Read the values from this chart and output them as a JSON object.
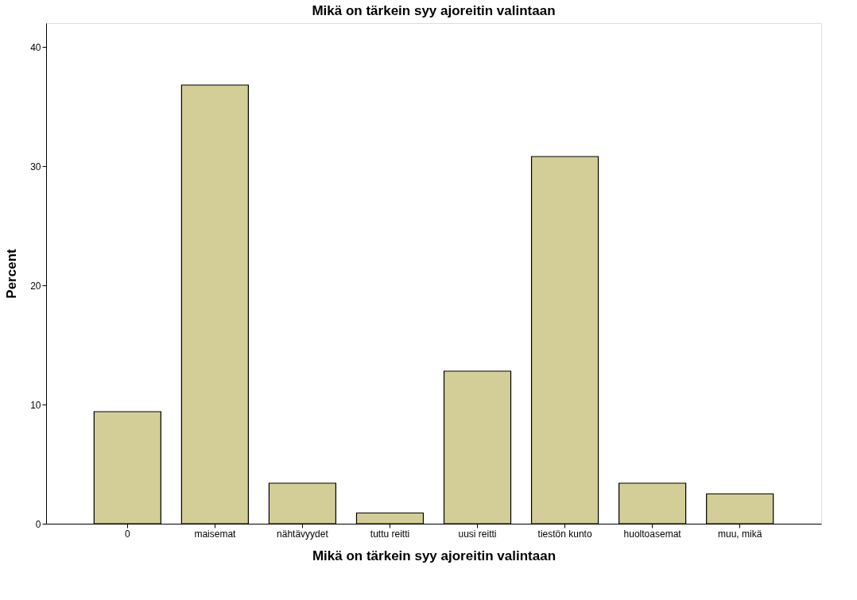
{
  "chart_data": {
    "type": "bar",
    "title": "Mikä on tärkein syy ajoreitin valintaan",
    "xlabel": "Mikä on tärkein syy ajoreitin valintaan",
    "ylabel": "Percent",
    "categories": [
      "0",
      "maisemat",
      "nähtävyydet",
      "tuttu reitti",
      "uusi reitti",
      "tiestön kunto",
      "huoltoasemat",
      "muu, mikä"
    ],
    "values": [
      9.4,
      36.8,
      3.4,
      0.9,
      12.8,
      30.8,
      3.4,
      2.5
    ],
    "color": "#d3ce97",
    "ylim": [
      0,
      42
    ],
    "yticks": [
      0,
      10,
      20,
      30,
      40
    ],
    "grid": false
  }
}
